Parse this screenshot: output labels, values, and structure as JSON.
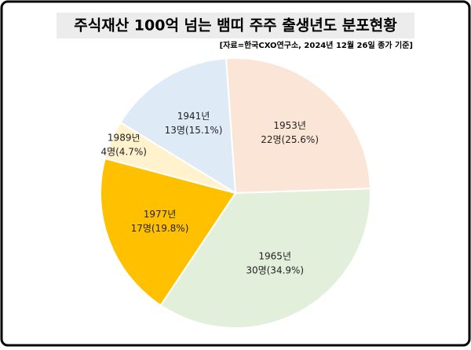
{
  "chart_data": {
    "type": "pie",
    "title": "주식재산 100억 넘는 뱀띠 주주 출생년도 분포현황",
    "subtitle": "[자료=한국CXO연구소, 2024년 12월 26일 종가 기준]",
    "categories": [
      "1953년",
      "1965년",
      "1977년",
      "1989년",
      "1941년"
    ],
    "values": [
      22,
      30,
      17,
      4,
      13
    ],
    "value_labels": [
      "22명(25.6%)",
      "30명(34.9%)",
      "17명(19.8%)",
      "4명(4.7%)",
      "13명(15.1%)"
    ],
    "colors": [
      "#fbe5d6",
      "#e2efda",
      "#ffc000",
      "#fff2cc",
      "#deebf7"
    ]
  }
}
